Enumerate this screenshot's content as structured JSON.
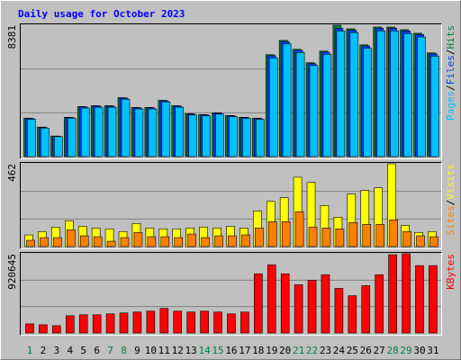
{
  "chart_data": [
    {
      "type": "bar",
      "title": "Daily usage for October 2023",
      "categories": [
        "1",
        "2",
        "3",
        "4",
        "5",
        "6",
        "7",
        "8",
        "9",
        "10",
        "11",
        "12",
        "13",
        "14",
        "15",
        "16",
        "17",
        "18",
        "19",
        "20",
        "21",
        "22",
        "23",
        "24",
        "25",
        "26",
        "27",
        "28",
        "29",
        "30",
        "31"
      ],
      "category_colors": [
        "#008040",
        "#000000",
        "#000000",
        "#000000",
        "#000000",
        "#000000",
        "#008040",
        "#008040",
        "#000000",
        "#000000",
        "#000000",
        "#000000",
        "#000000",
        "#008040",
        "#008040",
        "#000000",
        "#000000",
        "#000000",
        "#000000",
        "#000000",
        "#008040",
        "#008040",
        "#000000",
        "#000000",
        "#000000",
        "#000000",
        "#000000",
        "#008040",
        "#008040",
        "#000000",
        "#000000"
      ],
      "legend_separator": "/",
      "ylim": [
        0,
        8381
      ],
      "yticks": [
        8381
      ],
      "grid": true,
      "series": [
        {
          "name": "Hits",
          "color": "#008040",
          "values": [
            2452,
            1881,
            1311,
            2509,
            3193,
            3250,
            3250,
            3763,
            3136,
            3136,
            3592,
            3250,
            2737,
            2680,
            2794,
            2623,
            2509,
            2452,
            6500,
            7412,
            6842,
            5987,
            6728,
            8381,
            8153,
            7127,
            8267,
            8267,
            8096,
            7868,
            6614
          ]
        },
        {
          "name": "Files",
          "color": "#0040ff",
          "values": [
            2430,
            1860,
            1300,
            2490,
            3170,
            3220,
            3220,
            3730,
            3110,
            3110,
            3560,
            3220,
            2710,
            2660,
            2770,
            2600,
            2490,
            2430,
            6440,
            7340,
            6780,
            5930,
            6660,
            8180,
            8070,
            7060,
            8190,
            8190,
            8020,
            7790,
            6550
          ]
        },
        {
          "name": "Pages",
          "color": "#00c0ff",
          "values": [
            2380,
            1820,
            1270,
            2440,
            3100,
            3150,
            3150,
            3660,
            3040,
            3040,
            3490,
            3150,
            2650,
            2600,
            2710,
            2540,
            2440,
            2380,
            6300,
            7190,
            6640,
            5810,
            6520,
            8010,
            7910,
            6910,
            8020,
            8020,
            7850,
            7630,
            6410
          ]
        }
      ]
    },
    {
      "type": "bar",
      "legend_separator": "/",
      "ylim": [
        0,
        462
      ],
      "yticks": [
        462
      ],
      "grid": true,
      "series": [
        {
          "name": "Visits",
          "color": "#ffff00",
          "values": [
            65,
            84,
            109,
            144,
            114,
            104,
            99,
            84,
            129,
            104,
            99,
            99,
            104,
            109,
            104,
            114,
            104,
            199,
            253,
            273,
            387,
            358,
            229,
            164,
            293,
            313,
            328,
            462,
            119,
            79,
            84
          ]
        },
        {
          "name": "Sites",
          "color": "#ff8000",
          "values": [
            35,
            50,
            50,
            94,
            60,
            55,
            30,
            50,
            79,
            55,
            55,
            50,
            70,
            50,
            60,
            60,
            65,
            104,
            139,
            139,
            194,
            109,
            104,
            99,
            134,
            124,
            124,
            149,
            84,
            60,
            55
          ]
        }
      ]
    },
    {
      "type": "bar",
      "ylim": [
        0,
        920645
      ],
      "yticks": [
        920645
      ],
      "grid": true,
      "series": [
        {
          "name": "KBytes",
          "color": "#ff0000",
          "values": [
            105822,
            95240,
            84658,
            201062,
            211645,
            211645,
            222227,
            232809,
            243391,
            253973,
            285720,
            253973,
            243391,
            253973,
            243391,
            222227,
            243391,
            687720,
            793540,
            687720,
            560735,
            613645,
            677137,
            518405,
            433744,
            550153,
            677137,
            910063,
            920645,
            782957,
            782957
          ]
        }
      ]
    }
  ]
}
